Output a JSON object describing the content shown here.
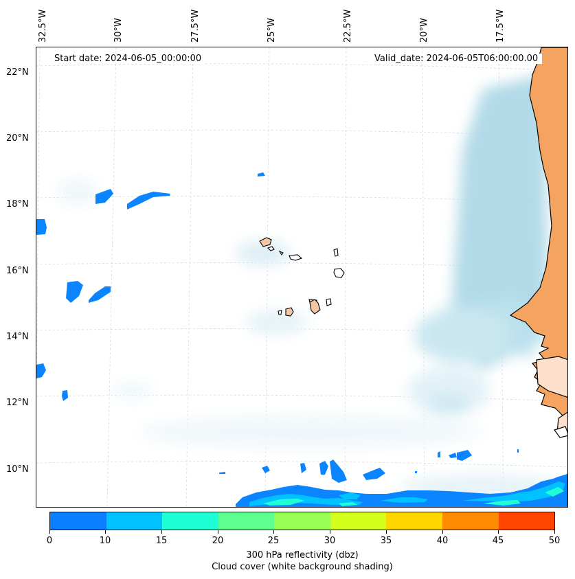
{
  "map": {
    "start_date": "Start date: 2024-06-05_00:00:00",
    "valid_date": "Valid_date: 2024-06-05T06:00:00.00",
    "lon_labels": [
      "32.5°W",
      "30°W",
      "27.5°W",
      "25°W",
      "22.5°W",
      "20°W",
      "17.5°W"
    ],
    "lat_labels": [
      "22°N",
      "20°N",
      "18°N",
      "16°N",
      "14°N",
      "12°N",
      "10°N"
    ],
    "extent": {
      "lon": [
        -32.5,
        -15.5
      ],
      "lat": [
        8.8,
        22.8
      ]
    },
    "colors": {
      "land": "#f4a460",
      "cloud": "#add8e6",
      "reflectivity_low": "#0a84ff"
    }
  },
  "colorbar": {
    "ticks": [
      "0",
      "10",
      "15",
      "20",
      "25",
      "30",
      "35",
      "40",
      "45",
      "50"
    ],
    "colors": [
      "#0a7fff",
      "#00c2ff",
      "#1effd6",
      "#5dff8f",
      "#99ff55",
      "#d4ff1c",
      "#ffd700",
      "#ff8c00",
      "#ff4500"
    ],
    "title": "300 hPa reflectivity (dbz)",
    "subtitle": "Cloud cover (white background shading)"
  }
}
